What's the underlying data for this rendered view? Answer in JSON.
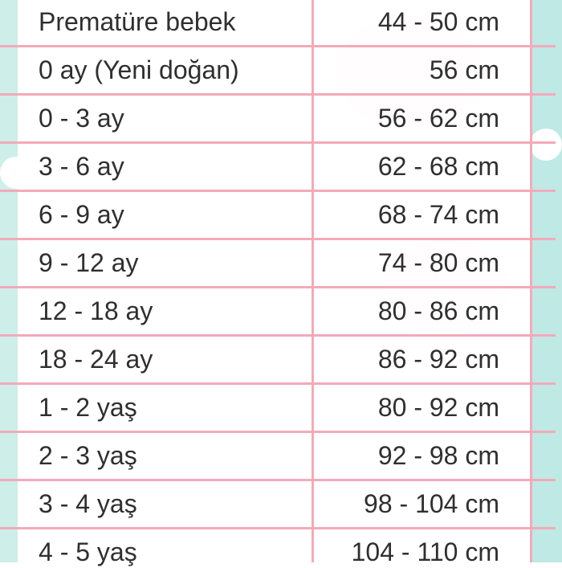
{
  "table": {
    "rows": [
      [
        "Prematüre bebek",
        "44 - 50 cm"
      ],
      [
        "0 ay (Yeni doğan)",
        "56 cm"
      ],
      [
        "0 - 3 ay",
        "56 - 62 cm"
      ],
      [
        "3 - 6 ay",
        "62 - 68 cm"
      ],
      [
        "6 - 9 ay",
        "68 - 74 cm"
      ],
      [
        "9 - 12 ay",
        "74 - 80 cm"
      ],
      [
        "12 - 18 ay",
        "80 - 86 cm"
      ],
      [
        "18 - 24 ay",
        "86 - 92 cm"
      ],
      [
        "1 - 2 yaş",
        "80 - 92 cm"
      ],
      [
        "2 - 3 yaş",
        "92 - 98 cm"
      ],
      [
        "3 - 4 yaş",
        "98 - 104 cm"
      ],
      [
        "4 - 5 yaş",
        "104 - 110 cm"
      ]
    ]
  }
}
